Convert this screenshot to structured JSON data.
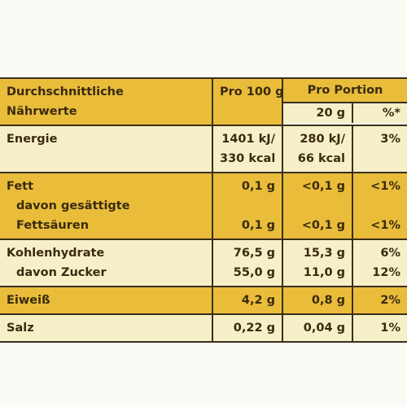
{
  "header": {
    "title_lines": [
      "Durchschnittliche",
      "Nährwerte"
    ],
    "per_100": "Pro 100 g",
    "per_portion": "Pro Portion",
    "portion_size": "20 g",
    "percent": "%*"
  },
  "groups": [
    {
      "lines": [
        [
          "Energie",
          "1401 kJ/",
          "280 kJ/",
          "3%"
        ],
        [
          null,
          "330 kcal",
          "66 kcal",
          null
        ]
      ]
    },
    {
      "lines": [
        [
          "Fett",
          "0,1 g",
          "<0,1 g",
          "<1%"
        ],
        [
          "davon gesättigte",
          null,
          null,
          null
        ],
        [
          "Fettsäuren",
          "0,1 g",
          "<0,1 g",
          "<1%"
        ]
      ]
    },
    {
      "lines": [
        [
          "Kohlenhydrate",
          "76,5 g",
          "15,3 g",
          "6%"
        ],
        [
          "davon Zucker",
          "55,0 g",
          "11,0 g",
          "12%"
        ]
      ]
    },
    {
      "lines": [
        [
          "Eiweiß",
          "4,2 g",
          "0,8 g",
          "2%"
        ]
      ]
    },
    {
      "lines": [
        [
          "Salz",
          "0,22 g",
          "0,04 g",
          "1%"
        ]
      ]
    }
  ]
}
